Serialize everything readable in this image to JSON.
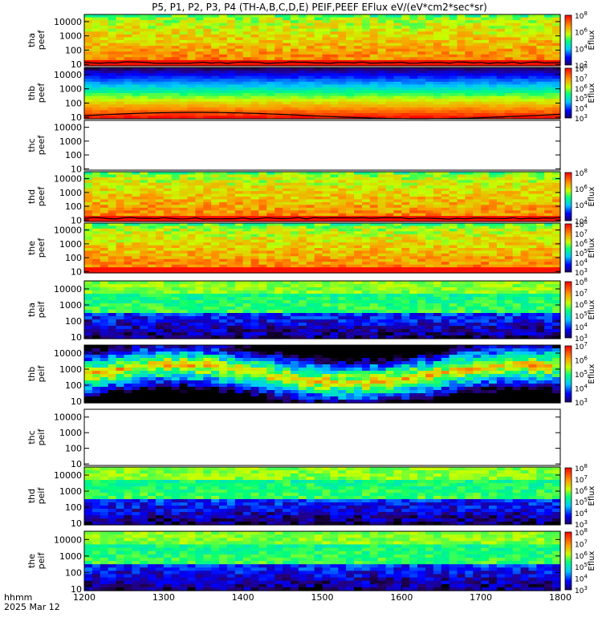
{
  "chart_data": {
    "type": "heatmap",
    "title": "P5, P1, P2, P3, P4 (TH-A,B,C,D,E) PEIF,PEEF EFlux eV/(eV*cm2*sec*sr)",
    "x": {
      "ticks": [
        1200,
        1300,
        1400,
        1500,
        1600,
        1700,
        1800
      ],
      "range": [
        1200,
        1800
      ],
      "label_line1": "hhmm",
      "label_line2": "2025 Mar 12"
    },
    "yticks": [
      "10",
      "100",
      "1000",
      "10000"
    ],
    "colorbar_label": "Eflux",
    "panels": [
      {
        "id": "tha_peef",
        "label": [
          "tha",
          "peef"
        ],
        "scale": [
          2,
          8
        ],
        "empty": false,
        "style": "electron_hot",
        "cbticks": [
          2,
          4,
          6,
          8
        ]
      },
      {
        "id": "thb_peef",
        "label": [
          "thb",
          "peef"
        ],
        "scale": [
          3,
          8
        ],
        "empty": false,
        "style": "electron_bands",
        "cbticks": [
          3,
          4,
          5,
          6,
          7,
          8
        ]
      },
      {
        "id": "thc_peef",
        "label": [
          "thc",
          "peef"
        ],
        "scale": null,
        "empty": true,
        "style": "none",
        "cbticks": []
      },
      {
        "id": "thd_peef",
        "label": [
          "thd",
          "peef"
        ],
        "scale": [
          2,
          8
        ],
        "empty": false,
        "style": "electron_hot",
        "cbticks": [
          2,
          4,
          6,
          8
        ]
      },
      {
        "id": "the_peef",
        "label": [
          "the",
          "peef"
        ],
        "scale": [
          3,
          8
        ],
        "empty": false,
        "style": "electron_hot2",
        "cbticks": [
          3,
          4,
          5,
          6,
          7,
          8
        ]
      },
      {
        "id": "tha_peif",
        "label": [
          "tha",
          "peif"
        ],
        "scale": [
          3,
          8
        ],
        "empty": false,
        "style": "ion",
        "cbticks": [
          3,
          4,
          5,
          6,
          7,
          8
        ]
      },
      {
        "id": "thb_peif",
        "label": [
          "thb",
          "peif"
        ],
        "scale": [
          3,
          7
        ],
        "empty": false,
        "style": "ion_bands",
        "cbticks": [
          3,
          4,
          5,
          6,
          7
        ]
      },
      {
        "id": "thc_peif",
        "label": [
          "thc",
          "peif"
        ],
        "scale": null,
        "empty": true,
        "style": "none",
        "cbticks": []
      },
      {
        "id": "thd_peif",
        "label": [
          "thd",
          "peif"
        ],
        "scale": [
          3,
          8
        ],
        "empty": false,
        "style": "ion",
        "cbticks": [
          3,
          4,
          5,
          6,
          7,
          8
        ]
      },
      {
        "id": "the_peif",
        "label": [
          "the",
          "peif"
        ],
        "scale": [
          3,
          8
        ],
        "empty": false,
        "style": "ion",
        "cbticks": [
          3,
          4,
          5,
          6,
          7,
          8
        ]
      }
    ]
  }
}
